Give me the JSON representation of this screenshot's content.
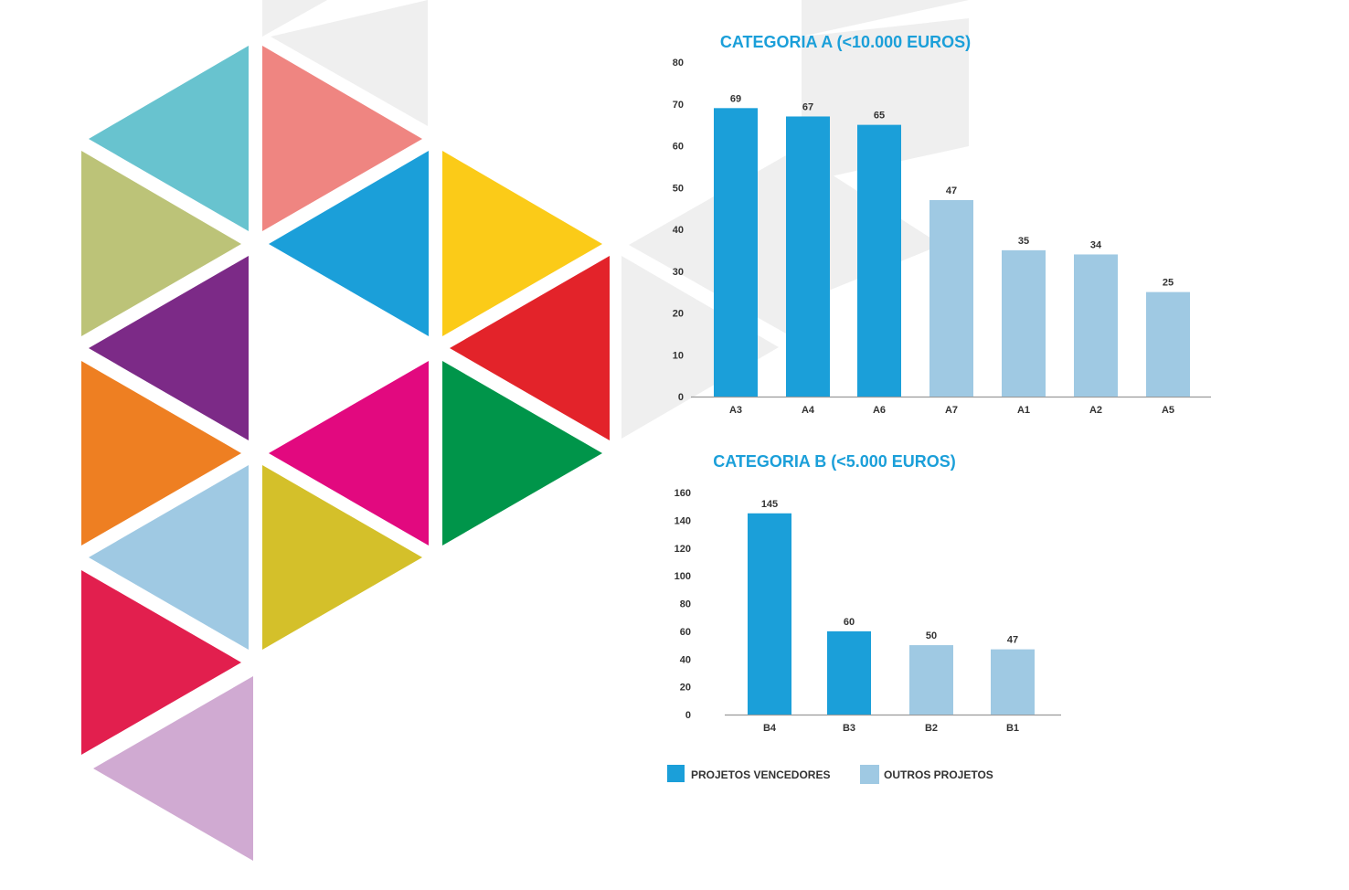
{
  "colors": {
    "winner": "#1b9fd9",
    "other": "#9fc9e3",
    "title": "#1b9fd9",
    "axis": "#999999",
    "text": "#333333",
    "background_triangles": "#efefef"
  },
  "decoration": {
    "logo_triangle_colors": [
      "#68c3cf",
      "#ef8581",
      "#bcc378",
      "#1b9fd9",
      "#fbcb18",
      "#7c2a87",
      "#e3232a",
      "#ee7f22",
      "#e2097f",
      "#00954a",
      "#9fc9e3",
      "#d4c02a",
      "#e21f4e",
      "#d0aad2"
    ]
  },
  "legend": {
    "winners_label": "PROJETOS VENCEDORES",
    "others_label": "OUTROS PROJETOS"
  },
  "chart_data": [
    {
      "type": "bar",
      "title": "CATEGORIA A (<10.000 EUROS)",
      "categories": [
        "A3",
        "A4",
        "A6",
        "A7",
        "A1",
        "A2",
        "A5"
      ],
      "values": [
        69,
        67,
        65,
        47,
        35,
        34,
        25
      ],
      "winner": [
        true,
        true,
        true,
        false,
        false,
        false,
        false
      ],
      "ylim": [
        0,
        80
      ],
      "yticks": [
        0,
        10,
        20,
        30,
        40,
        50,
        60,
        70,
        80
      ],
      "xlabel": "",
      "ylabel": "",
      "grid": false,
      "legend": "bottom-left"
    },
    {
      "type": "bar",
      "title": "CATEGORIA B (<5.000 EUROS)",
      "categories": [
        "B4",
        "B3",
        "B2",
        "B1"
      ],
      "values": [
        145,
        60,
        50,
        47
      ],
      "winner": [
        true,
        true,
        false,
        false
      ],
      "ylim": [
        0,
        160
      ],
      "yticks": [
        0,
        20,
        40,
        60,
        80,
        100,
        120,
        140,
        160
      ],
      "xlabel": "",
      "ylabel": "",
      "grid": false,
      "legend": "bottom-left"
    }
  ]
}
